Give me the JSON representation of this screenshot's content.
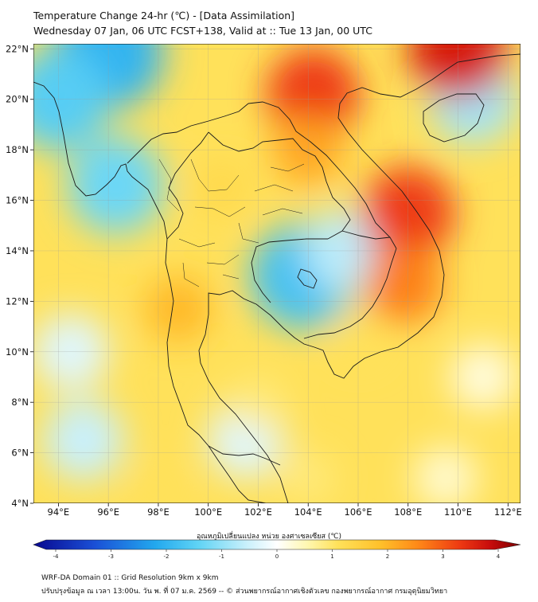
{
  "header": {
    "title_line1": "Temperature Change 24-hr (℃) - [Data Assimilation]",
    "title_line2": "Wednesday 07 Jan, 06 UTC FCST+138, Valid at :: Tue 13 Jan, 00 UTC"
  },
  "map": {
    "lon_min": 93,
    "lon_max": 112.5,
    "lat_min": 4,
    "lat_max": 22.2,
    "lon_ticks": [
      94,
      96,
      98,
      100,
      102,
      104,
      106,
      108,
      110,
      112
    ],
    "lon_labels": [
      "94°E",
      "96°E",
      "98°E",
      "100°E",
      "102°E",
      "104°E",
      "106°E",
      "108°E",
      "110°E",
      "112°E"
    ],
    "lat_ticks": [
      4,
      6,
      8,
      10,
      12,
      14,
      16,
      18,
      20,
      22
    ],
    "lat_labels": [
      "4°N",
      "6°N",
      "8°N",
      "10°N",
      "12°N",
      "14°N",
      "16°N",
      "18°N",
      "20°N",
      "22°N"
    ],
    "field": [
      {
        "lon": 96,
        "lat": 21.8,
        "value": -1.8
      },
      {
        "lon": 94,
        "lat": 20,
        "value": -1.4
      },
      {
        "lon": 96.3,
        "lat": 16.6,
        "value": -1.2
      },
      {
        "lon": 103.8,
        "lat": 13,
        "value": -1.6
      },
      {
        "lon": 105.5,
        "lat": 14,
        "value": -0.6
      },
      {
        "lon": 110.6,
        "lat": 20,
        "value": -0.8
      },
      {
        "lon": 94.5,
        "lat": 10,
        "value": -0.3
      },
      {
        "lon": 95,
        "lat": 6.5,
        "value": -0.5
      },
      {
        "lon": 101.5,
        "lat": 6.5,
        "value": -0.3
      },
      {
        "lon": 111,
        "lat": 9,
        "value": 0.2
      },
      {
        "lon": 109.5,
        "lat": 5,
        "value": 0.3
      },
      {
        "lon": 104.2,
        "lat": 20.2,
        "value": 3.0
      },
      {
        "lon": 104,
        "lat": 18,
        "value": 2.0
      },
      {
        "lon": 108,
        "lat": 15.5,
        "value": 3.0
      },
      {
        "lon": 107.8,
        "lat": 12.7,
        "value": 2.4
      },
      {
        "lon": 110,
        "lat": 22,
        "value": 3.3
      },
      {
        "lon": 98.8,
        "lat": 11.7,
        "value": 1.8
      },
      {
        "lon": 106,
        "lat": 10.5,
        "value": 1.0
      },
      {
        "lon": 100.5,
        "lat": 16.5,
        "value": 1.2
      },
      {
        "lon": 102,
        "lat": 8,
        "value": 0.8
      },
      {
        "lon": 98,
        "lat": 4.5,
        "value": 1.0
      },
      {
        "lon": 104,
        "lat": 5,
        "value": 0.8
      }
    ],
    "background_value": 1.0
  },
  "colorbar": {
    "label": "อุณหภูมิเปลี่ยนแปลง หน่วย องศาเซลเซียส (℃)",
    "min": -4,
    "max": 4,
    "ticks": [
      -4,
      -3,
      -2,
      -1,
      0,
      1,
      2,
      3,
      4
    ],
    "tick_labels": [
      "-4",
      "-3",
      "-2",
      "-1",
      "0",
      "1",
      "2",
      "3",
      "4"
    ],
    "stops": [
      {
        "value": -4,
        "color": "#08088f"
      },
      {
        "value": -3,
        "color": "#1a4fd6"
      },
      {
        "value": -2,
        "color": "#22a8ee"
      },
      {
        "value": -1.3,
        "color": "#5fd3f5"
      },
      {
        "value": -0.5,
        "color": "#c9f0fb"
      },
      {
        "value": 0,
        "color": "#ffffff"
      },
      {
        "value": 0.5,
        "color": "#fff7b0"
      },
      {
        "value": 1,
        "color": "#ffe15a"
      },
      {
        "value": 1.7,
        "color": "#ffc02a"
      },
      {
        "value": 2.3,
        "color": "#ff8a18"
      },
      {
        "value": 3,
        "color": "#ee3a12"
      },
      {
        "value": 3.5,
        "color": "#c80c0c"
      },
      {
        "value": 4,
        "color": "#7a0000"
      }
    ]
  },
  "footer": {
    "line1": "WRF-DA Domain 01 :: Grid Resolution 9km x 9km",
    "line2": "ปรับปรุงข้อมูล ณ เวลา 13:00น. วัน พ. ที่ 07 ม.ค. 2569 -- © ส่วนพยากรณ์อากาศเชิงตัวเลข กองพยากรณ์อากาศ กรมอุตุนิยมวิทยา"
  }
}
